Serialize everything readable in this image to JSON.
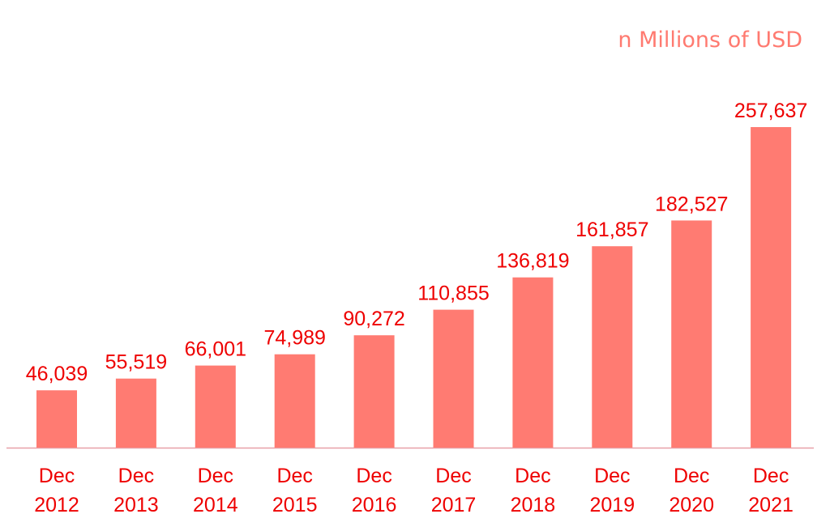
{
  "chart_data": {
    "type": "bar",
    "unit_label": "n Millions of USD",
    "categories": [
      [
        "Dec",
        "2012"
      ],
      [
        "Dec",
        "2013"
      ],
      [
        "Dec",
        "2014"
      ],
      [
        "Dec",
        "2015"
      ],
      [
        "Dec",
        "2016"
      ],
      [
        "Dec",
        "2017"
      ],
      [
        "Dec",
        "2018"
      ],
      [
        "Dec",
        "2019"
      ],
      [
        "Dec",
        "2020"
      ],
      [
        "Dec",
        "2021"
      ]
    ],
    "values": [
      46039,
      55519,
      66001,
      74989,
      90272,
      110855,
      136819,
      161857,
      182527,
      257637
    ],
    "value_labels": [
      "46,039",
      "55,519",
      "66,001",
      "74,989",
      "90,272",
      "110,855",
      "136,819",
      "161,857",
      "182,527",
      "257,637"
    ],
    "xlabel": "",
    "ylabel": "",
    "ylim": [
      0,
      257637
    ],
    "grid": false,
    "legend": "none",
    "colors": {
      "bar": "#ff7b72",
      "label_text": "#ee0000",
      "unit_text": "#ff7a70",
      "baseline": "#e8a0a8"
    }
  }
}
